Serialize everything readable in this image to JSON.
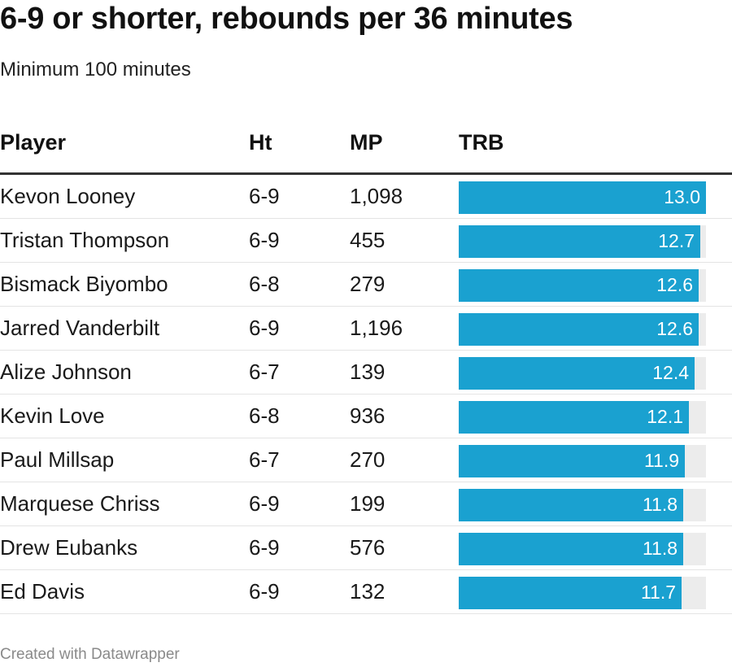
{
  "header": {
    "title": "6-9 or shorter, rebounds per 36 minutes",
    "subtitle": "Minimum 100 minutes"
  },
  "table": {
    "columns": [
      "Player",
      "Ht",
      "MP",
      "TRB"
    ]
  },
  "chart_data": {
    "type": "table",
    "title": "6-9 or shorter, rebounds per 36 minutes",
    "subtitle": "Minimum 100 minutes",
    "columns": [
      "Player",
      "Ht",
      "MP",
      "TRB"
    ],
    "bar_column": "TRB",
    "bar_max": 13.0,
    "bar_color": "#1aa1d0",
    "track_color": "#ececec",
    "rows": [
      {
        "player": "Kevon Looney",
        "ht": "6-9",
        "mp": "1,098",
        "trb": 13.0,
        "trb_label": "13.0"
      },
      {
        "player": "Tristan Thompson",
        "ht": "6-9",
        "mp": "455",
        "trb": 12.7,
        "trb_label": "12.7"
      },
      {
        "player": "Bismack Biyombo",
        "ht": "6-8",
        "mp": "279",
        "trb": 12.6,
        "trb_label": "12.6"
      },
      {
        "player": "Jarred Vanderbilt",
        "ht": "6-9",
        "mp": "1,196",
        "trb": 12.6,
        "trb_label": "12.6"
      },
      {
        "player": "Alize Johnson",
        "ht": "6-7",
        "mp": "139",
        "trb": 12.4,
        "trb_label": "12.4"
      },
      {
        "player": "Kevin Love",
        "ht": "6-8",
        "mp": "936",
        "trb": 12.1,
        "trb_label": "12.1"
      },
      {
        "player": "Paul Millsap",
        "ht": "6-7",
        "mp": "270",
        "trb": 11.9,
        "trb_label": "11.9"
      },
      {
        "player": "Marquese Chriss",
        "ht": "6-9",
        "mp": "199",
        "trb": 11.8,
        "trb_label": "11.8"
      },
      {
        "player": "Drew Eubanks",
        "ht": "6-9",
        "mp": "576",
        "trb": 11.8,
        "trb_label": "11.8"
      },
      {
        "player": "Ed Davis",
        "ht": "6-9",
        "mp": "132",
        "trb": 11.7,
        "trb_label": "11.7"
      }
    ]
  },
  "footer": {
    "credit": "Created with Datawrapper"
  }
}
